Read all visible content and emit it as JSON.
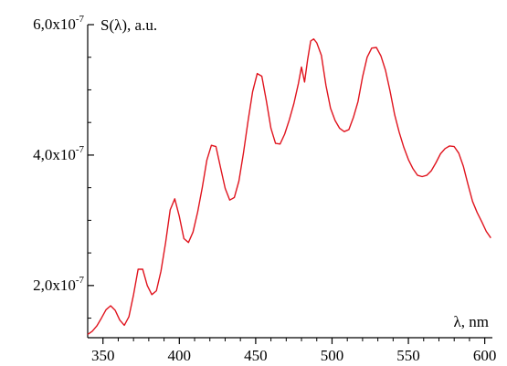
{
  "chart_data": {
    "type": "line",
    "ylabel": "S(λ), a.u.",
    "xlabel": "λ, nm",
    "xlim": [
      340,
      605
    ],
    "ylim": [
      1.2e-07,
      6e-07
    ],
    "x_ticks": [
      350,
      400,
      450,
      500,
      550,
      600
    ],
    "x_tick_labels": [
      "350",
      "400",
      "450",
      "500",
      "550",
      "600"
    ],
    "y_ticks": [
      {
        "value": 2e-07,
        "mantissa": "2,0x10",
        "exponent": "-7"
      },
      {
        "value": 4e-07,
        "mantissa": "4,0x10",
        "exponent": "-7"
      },
      {
        "value": 6e-07,
        "mantissa": "6,0x10",
        "exponent": "-7"
      }
    ],
    "series_color": "#e0141e",
    "grid": false,
    "series": [
      {
        "x": [
          340,
          343,
          346,
          349,
          352,
          355,
          358,
          361,
          364,
          367,
          370,
          373,
          376,
          379,
          382,
          385,
          388,
          391,
          394,
          397,
          400,
          403,
          406,
          409,
          412,
          415,
          418,
          421,
          424,
          427,
          430,
          433,
          436,
          439,
          442,
          445,
          448,
          451,
          454,
          457,
          460,
          463,
          466,
          469,
          472,
          475,
          478,
          480,
          482,
          484,
          486,
          488,
          490,
          493,
          496,
          499,
          502,
          505,
          508,
          511,
          514,
          517,
          520,
          523,
          526,
          529,
          532,
          535,
          538,
          541,
          544,
          547,
          550,
          553,
          556,
          559,
          562,
          565,
          568,
          571,
          574,
          577,
          580,
          583,
          586,
          589,
          592,
          595,
          598,
          601,
          604
        ],
        "y": [
          1.25e-07,
          1.3e-07,
          1.38e-07,
          1.5e-07,
          1.63e-07,
          1.69e-07,
          1.62e-07,
          1.47e-07,
          1.39e-07,
          1.52e-07,
          1.86e-07,
          2.25e-07,
          2.25e-07,
          2e-07,
          1.86e-07,
          1.92e-07,
          2.22e-07,
          2.66e-07,
          3.16e-07,
          3.33e-07,
          3.06e-07,
          2.72e-07,
          2.66e-07,
          2.82e-07,
          3.13e-07,
          3.5e-07,
          3.92e-07,
          4.15e-07,
          4.13e-07,
          3.81e-07,
          3.49e-07,
          3.31e-07,
          3.35e-07,
          3.6e-07,
          4.03e-07,
          4.52e-07,
          4.97e-07,
          5.25e-07,
          5.21e-07,
          4.83e-07,
          4.41e-07,
          4.18e-07,
          4.17e-07,
          4.32e-07,
          4.54e-07,
          4.79e-07,
          5.1e-07,
          5.35e-07,
          5.12e-07,
          5.46e-07,
          5.75e-07,
          5.78e-07,
          5.72e-07,
          5.53e-07,
          5.07e-07,
          4.72e-07,
          4.53e-07,
          4.41e-07,
          4.36e-07,
          4.39e-07,
          4.58e-07,
          4.82e-07,
          5.2e-07,
          5.5e-07,
          5.64e-07,
          5.65e-07,
          5.52e-07,
          5.3e-07,
          4.98e-07,
          4.62e-07,
          4.35e-07,
          4.12e-07,
          3.93e-07,
          3.79e-07,
          3.69e-07,
          3.67e-07,
          3.69e-07,
          3.76e-07,
          3.88e-07,
          4.02e-07,
          4.1e-07,
          4.14e-07,
          4.13e-07,
          4.03e-07,
          3.83e-07,
          3.55e-07,
          3.29e-07,
          3.12e-07,
          2.98e-07,
          2.83e-07,
          2.73e-07
        ]
      }
    ]
  }
}
